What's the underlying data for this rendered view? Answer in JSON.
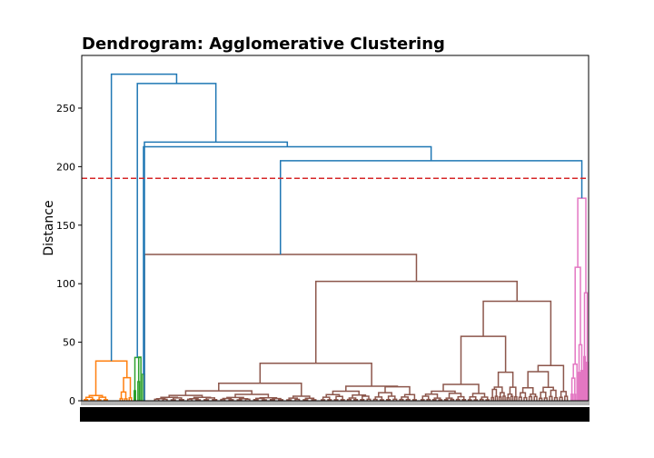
{
  "chart_data": {
    "type": "dendrogram",
    "title": "Dendrogram: Agglomerative Clustering",
    "xlabel": "",
    "ylabel": "Distance",
    "ylim": [
      0,
      295
    ],
    "yticks": [
      0,
      50,
      100,
      150,
      200,
      250
    ],
    "threshold": {
      "value": 190,
      "color": "#d62728",
      "style": "dashed"
    },
    "x_tick_labels_legible": false,
    "colors": {
      "above_threshold": "#1f77b4",
      "orange": "#ff7f0e",
      "green": "#2ca02c",
      "brown": "#8c564b",
      "pink": "#e377c2"
    },
    "clusters": [
      {
        "color": "orange",
        "top_height": 34,
        "leaves": 20
      },
      {
        "color": "green",
        "top_height": 37,
        "leaves": 5
      },
      {
        "color": "brown",
        "top_height": 125,
        "leaves": 180
      },
      {
        "color": "pink",
        "top_height": 173,
        "leaves": 12
      }
    ],
    "merges_above_threshold": [
      {
        "height": 205,
        "joins": "brown + pink"
      },
      {
        "height": 217,
        "joins": "(brown+pink) + green-sub"
      },
      {
        "height": 221,
        "joins": "previous + small"
      },
      {
        "height": 271,
        "joins": "green + previous"
      },
      {
        "height": 279,
        "joins": "orange + rest"
      }
    ]
  }
}
